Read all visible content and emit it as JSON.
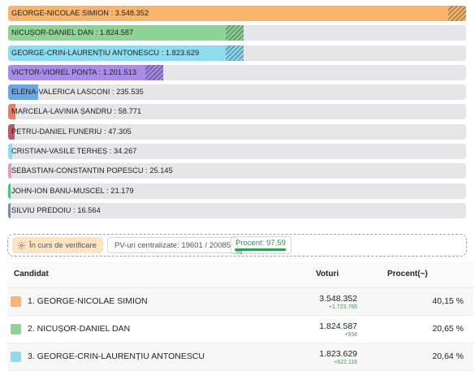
{
  "candidates": [
    {
      "label": "GEORGE-NICOLAE SIMION : 3.548.352",
      "votes": 3548352,
      "color": "#f9b56c",
      "hatch": true
    },
    {
      "label": "NICUȘOR-DANIEL DAN : 1.824.587",
      "votes": 1824587,
      "color": "#8fd497",
      "hatch": true
    },
    {
      "label": "GEORGE-CRIN-LAURENȚIU ANTONESCU : 1.823.629",
      "votes": 1823629,
      "color": "#8fdcef",
      "hatch": true
    },
    {
      "label": "VICTOR-VIOREL PONTA : 1.201.513",
      "votes": 1201513,
      "color": "#a98ce6",
      "hatch": true
    },
    {
      "label": "ELENA-VALERICA LASCONI : 235.535",
      "votes": 235535,
      "color": "#6ea6e0",
      "hatch": false
    },
    {
      "label": "MARCELA-LAVINIA ȘANDRU : 58.771",
      "votes": 58771,
      "color": "#e0826b",
      "hatch": false
    },
    {
      "label": "PETRU-DANIEL FUNERIU : 47.305",
      "votes": 47305,
      "color": "#c0566d",
      "hatch": false
    },
    {
      "label": "CRISTIAN-VASILE TERHEȘ : 34.267",
      "votes": 34267,
      "color": "#8fdcef",
      "hatch": false
    },
    {
      "label": "SEBASTIAN-CONSTANTIN POPESCU : 25.145",
      "votes": 25145,
      "color": "#e39bc2",
      "hatch": false
    },
    {
      "label": "JOHN-ION BANU-MUSCEL : 21.179",
      "votes": 21179,
      "color": "#4bc08a",
      "hatch": false
    },
    {
      "label": "SILVIU PREDOIU : 16.564",
      "votes": 16564,
      "color": "#7d8da6",
      "hatch": false
    }
  ],
  "status": {
    "verification_label": "În curs de verificare",
    "pv_label": "PV-uri centralizate: 19601 / 20085",
    "percent_label": "Procent: 97,59 %",
    "percent_value": 97.59
  },
  "table": {
    "headers": {
      "candidate": "Candidat",
      "votes": "Voturi",
      "percent": "Procent(~)"
    },
    "rows": [
      {
        "name": "1. GEORGE-NICOLAE SIMION",
        "votes": "3.548.352",
        "delta": "+1.723.765",
        "percent": "40,15 %",
        "color": "#f9b56c"
      },
      {
        "name": "2. NICUȘOR-DANIEL DAN",
        "votes": "1.824.587",
        "delta": "+958",
        "percent": "20,65 %",
        "color": "#8fd497"
      },
      {
        "name": "3. GEORGE-CRIN-LAURENȚIU ANTONESCU",
        "votes": "1.823.629",
        "delta": "+622.116",
        "percent": "20,64 %",
        "color": "#8fdcef"
      }
    ]
  }
}
